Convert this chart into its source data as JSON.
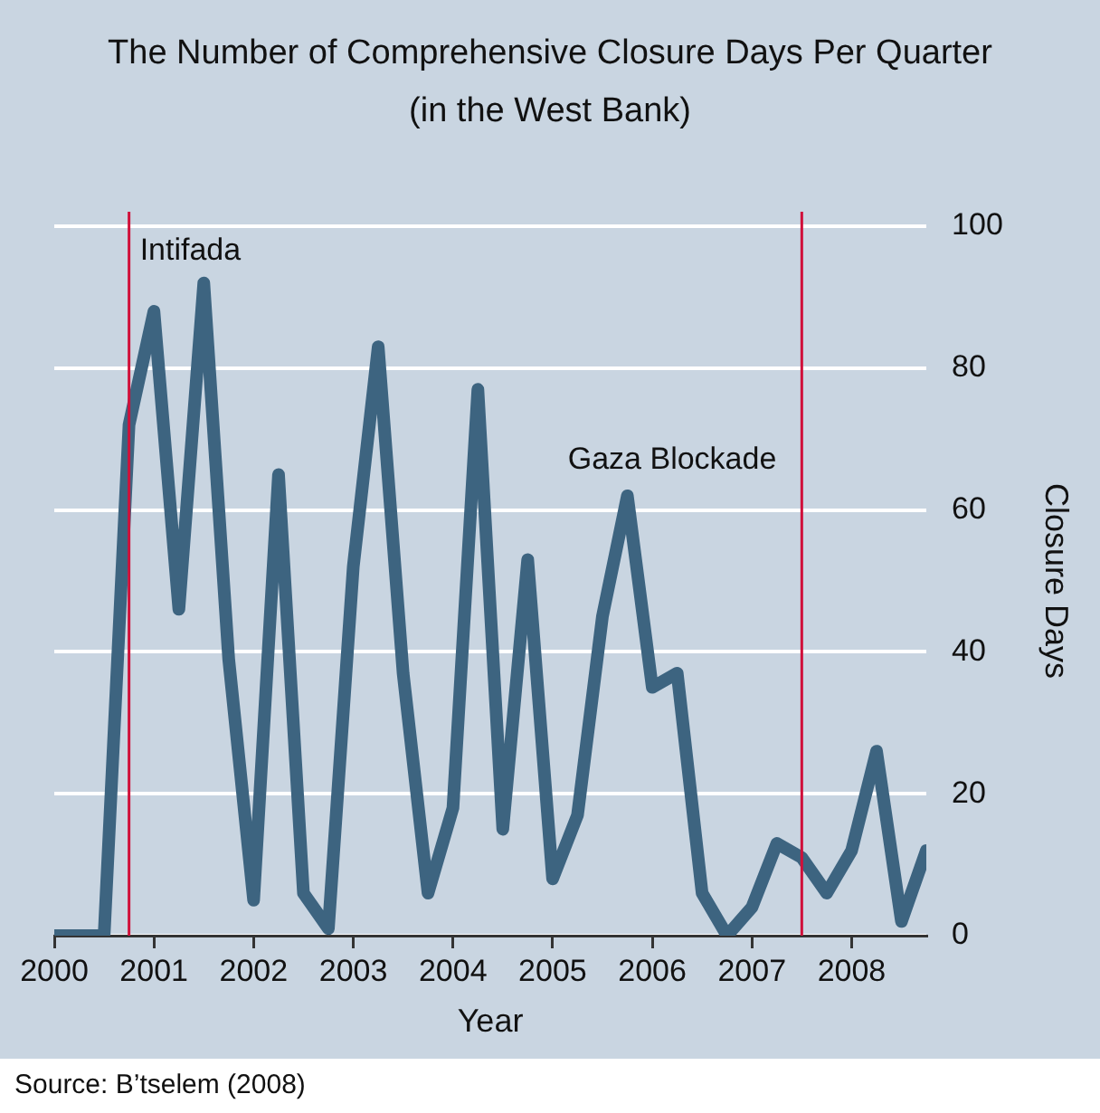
{
  "chart_data": {
    "type": "line",
    "title": "The Number of Comprehensive Closure Days Per Quarter",
    "subtitle": "(in the West Bank)",
    "xlabel": "Year",
    "ylabel": "Closure Days",
    "x": [
      2000,
      2000.25,
      2000.5,
      2000.75,
      2001,
      2001.25,
      2001.5,
      2001.75,
      2002,
      2002.25,
      2002.5,
      2002.75,
      2003,
      2003.25,
      2003.5,
      2003.75,
      2004,
      2004.25,
      2004.5,
      2004.75,
      2005,
      2005.25,
      2005.5,
      2005.75,
      2006,
      2006.25,
      2006.5,
      2006.75,
      2007,
      2007.25,
      2007.5,
      2007.75,
      2008,
      2008.25,
      2008.5,
      2008.75
    ],
    "series": [
      {
        "color": "#3d6480",
        "values": [
          0,
          0,
          0,
          72,
          88,
          46,
          92,
          39,
          5,
          65,
          6,
          1,
          52,
          83,
          37,
          6,
          18,
          77,
          15,
          53,
          8,
          17,
          45,
          62,
          35,
          37,
          6,
          0,
          4,
          13,
          11,
          6,
          12,
          26,
          2,
          12
        ]
      }
    ],
    "xlim": [
      2000,
      2008.75
    ],
    "xticks": [
      2000,
      2001,
      2002,
      2003,
      2004,
      2005,
      2006,
      2007,
      2008
    ],
    "ylim": [
      0,
      100
    ],
    "yticks": [
      0,
      20,
      40,
      60,
      80,
      100
    ],
    "grid": "y",
    "legend": false,
    "marker": "none",
    "line_style": "solid",
    "ref_lines": [
      {
        "axis": "x",
        "value": 2000.75,
        "label": "Intifada",
        "color": "#d0103a"
      },
      {
        "axis": "x",
        "value": 2007.5,
        "label": "Gaza Blockade",
        "color": "#d0103a"
      }
    ],
    "annotations": [
      "Source: B’tselem (2008)"
    ]
  }
}
